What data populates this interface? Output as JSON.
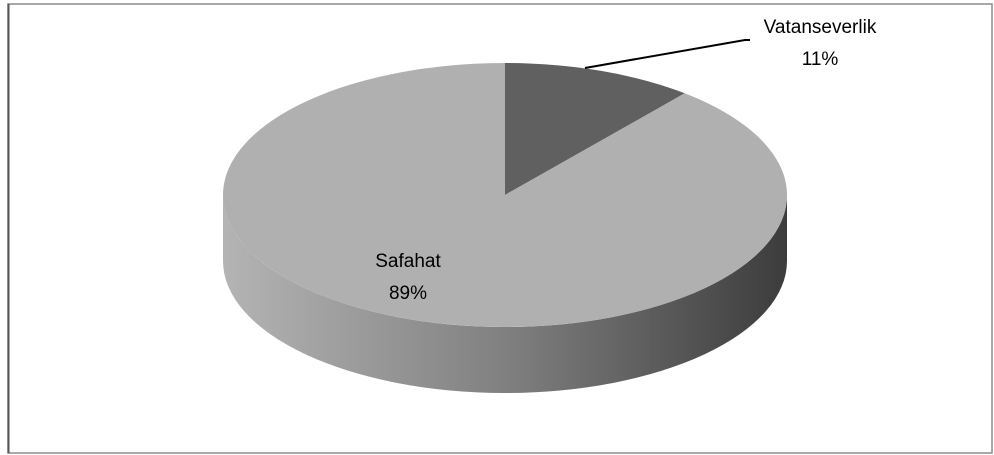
{
  "chart_data": {
    "type": "pie",
    "categories": [
      "Vatanseverlik",
      "Safahat"
    ],
    "values": [
      11,
      89
    ],
    "value_labels": [
      "11%",
      "89%"
    ],
    "colors": [
      "#606060",
      "#b0b0b0"
    ]
  }
}
